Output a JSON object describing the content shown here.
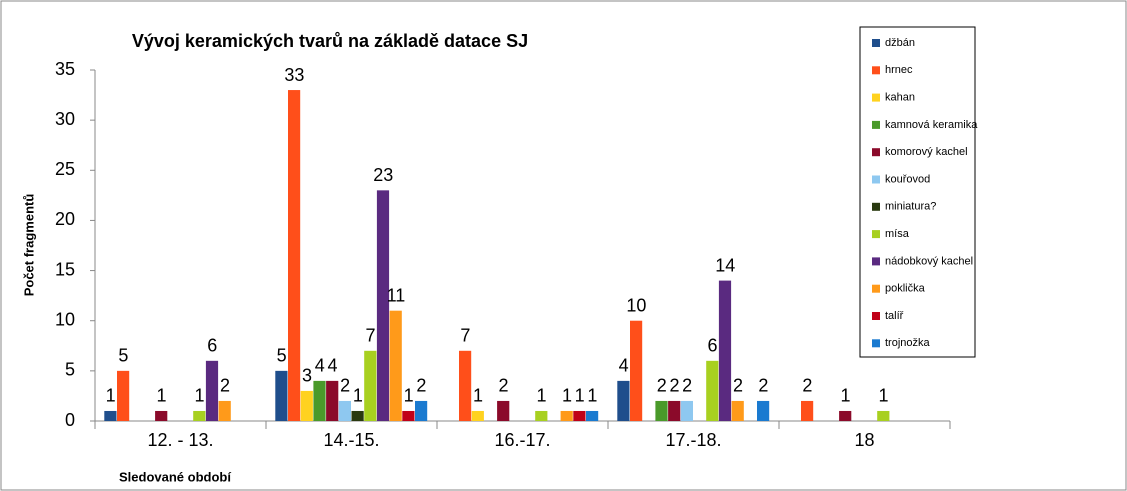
{
  "chart_data": {
    "type": "bar",
    "title": "Vývoj keramických tvarů na základě datace SJ",
    "y_label": "Počet fragmentů",
    "x_label": "Sledované období",
    "categories": [
      "12. - 13.",
      "14.-15.",
      "16.-17.",
      "17.-18.",
      "18"
    ],
    "ylim": [
      0,
      35
    ],
    "yticks": [
      0,
      5,
      10,
      15,
      20,
      25,
      30,
      35
    ],
    "legend": "right",
    "series": [
      {
        "name": "džbán",
        "color": "#1f4e8c",
        "values": [
          1,
          5,
          null,
          4,
          null
        ]
      },
      {
        "name": "hrnec",
        "color": "#ff4f1a",
        "values": [
          5,
          33,
          7,
          10,
          2
        ]
      },
      {
        "name": "kahan",
        "color": "#ffd21f",
        "values": [
          null,
          3,
          1,
          null,
          null
        ]
      },
      {
        "name": "kamnová keramika",
        "color": "#4a9a2a",
        "values": [
          null,
          4,
          null,
          2,
          null
        ]
      },
      {
        "name": "komorový kachel",
        "color": "#8b0a2a",
        "values": [
          1,
          4,
          2,
          2,
          1
        ]
      },
      {
        "name": "kouřovod",
        "color": "#8ec8f0",
        "values": [
          null,
          2,
          null,
          2,
          null
        ]
      },
      {
        "name": "miniatura?",
        "color": "#2a3a10",
        "values": [
          null,
          1,
          null,
          null,
          null
        ]
      },
      {
        "name": "mísa",
        "color": "#a8d020",
        "values": [
          1,
          7,
          1,
          6,
          1
        ]
      },
      {
        "name": "nádobkový kachel",
        "color": "#5a2a80",
        "values": [
          6,
          23,
          null,
          14,
          null
        ]
      },
      {
        "name": "poklička",
        "color": "#ff9a1a",
        "values": [
          2,
          11,
          1,
          2,
          null
        ]
      },
      {
        "name": "talíř",
        "color": "#c00018",
        "values": [
          null,
          1,
          1,
          null,
          null
        ]
      },
      {
        "name": "trojnožka",
        "color": "#1a7ad0",
        "values": [
          null,
          2,
          1,
          2,
          null
        ]
      }
    ]
  }
}
